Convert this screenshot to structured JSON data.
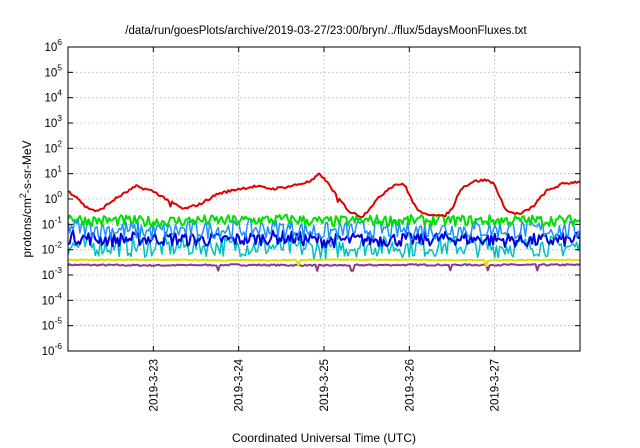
{
  "chart_data": {
    "type": "line",
    "title": "/data/run/goesPlots/archive/2019-03-27/23:00/bryn/../flux/5daysMoonFluxes.txt",
    "xlabel": "Coordinated Universal Time (UTC)",
    "ylabel": {
      "base": "protons/cm",
      "sup": "2",
      "rest": "-s-sr-MeV"
    },
    "y_scale": "log",
    "ylim_exp": [
      -6,
      6
    ],
    "y_ticks": [
      {
        "base": "10",
        "exp": "-6"
      },
      {
        "base": "10",
        "exp": "-5"
      },
      {
        "base": "10",
        "exp": "-4"
      },
      {
        "base": "10",
        "exp": "-3"
      },
      {
        "base": "10",
        "exp": "-2"
      },
      {
        "base": "10",
        "exp": "-1"
      },
      {
        "base": "10",
        "exp": "0"
      },
      {
        "base": "10",
        "exp": "1"
      },
      {
        "base": "10",
        "exp": "2"
      },
      {
        "base": "10",
        "exp": "3"
      },
      {
        "base": "10",
        "exp": "4"
      },
      {
        "base": "10",
        "exp": "5"
      },
      {
        "base": "10",
        "exp": "6"
      }
    ],
    "x_ticks": [
      {
        "label": "2019-3-23",
        "day": 23
      },
      {
        "label": "2019-3-24",
        "day": 24
      },
      {
        "label": "2019-3-25",
        "day": 25
      },
      {
        "label": "2019-3-26",
        "day": 26
      },
      {
        "label": "2019-3-27",
        "day": 27
      }
    ],
    "xlim_day": [
      22.0,
      28.0
    ],
    "grid": true,
    "series": [
      {
        "color": "#e00000",
        "width": 2,
        "noise": 0.05,
        "points": [
          [
            22.0,
            0.3
          ],
          [
            22.1,
            0.1
          ],
          [
            22.2,
            -0.3
          ],
          [
            22.35,
            -0.5
          ],
          [
            22.55,
            0.0
          ],
          [
            22.8,
            0.5
          ],
          [
            23.0,
            0.3
          ],
          [
            23.2,
            -0.1
          ],
          [
            23.35,
            -0.4
          ],
          [
            23.55,
            -0.2
          ],
          [
            23.75,
            0.2
          ],
          [
            24.0,
            0.4
          ],
          [
            24.2,
            0.5
          ],
          [
            24.4,
            0.4
          ],
          [
            24.6,
            0.5
          ],
          [
            24.85,
            0.7
          ],
          [
            24.95,
            1.0
          ],
          [
            25.05,
            0.6
          ],
          [
            25.2,
            -0.1
          ],
          [
            25.3,
            -0.5
          ],
          [
            25.45,
            -0.7
          ],
          [
            25.6,
            -0.1
          ],
          [
            25.75,
            0.4
          ],
          [
            25.85,
            0.6
          ],
          [
            25.95,
            0.55
          ],
          [
            26.05,
            -0.2
          ],
          [
            26.15,
            -0.6
          ],
          [
            26.3,
            -0.6
          ],
          [
            26.4,
            -0.7
          ],
          [
            26.5,
            -0.4
          ],
          [
            26.6,
            0.4
          ],
          [
            26.75,
            0.7
          ],
          [
            26.9,
            0.75
          ],
          [
            27.0,
            0.6
          ],
          [
            27.05,
            0.1
          ],
          [
            27.15,
            -0.5
          ],
          [
            27.3,
            -0.6
          ],
          [
            27.45,
            -0.3
          ],
          [
            27.6,
            0.3
          ],
          [
            27.8,
            0.6
          ],
          [
            28.0,
            0.7
          ]
        ]
      },
      {
        "color": "#00e000",
        "width": 2,
        "noise": 0.22,
        "points": [
          [
            22.0,
            -0.7
          ],
          [
            22.2,
            -0.85
          ],
          [
            22.6,
            -0.85
          ],
          [
            23.0,
            -0.9
          ],
          [
            23.5,
            -0.85
          ],
          [
            24.0,
            -0.85
          ],
          [
            24.6,
            -0.8
          ],
          [
            25.0,
            -0.9
          ],
          [
            25.5,
            -0.85
          ],
          [
            26.0,
            -0.85
          ],
          [
            26.5,
            -0.85
          ],
          [
            27.0,
            -0.85
          ],
          [
            27.5,
            -0.85
          ],
          [
            28.0,
            -0.85
          ]
        ]
      },
      {
        "color": "#1e90ff",
        "width": 1.5,
        "noise": 0.38,
        "points": [
          [
            22.0,
            -1.1
          ],
          [
            22.5,
            -1.2
          ],
          [
            23.0,
            -1.3
          ],
          [
            23.5,
            -1.2
          ],
          [
            24.0,
            -1.2
          ],
          [
            24.5,
            -1.15
          ],
          [
            25.0,
            -1.3
          ],
          [
            25.5,
            -1.2
          ],
          [
            26.0,
            -1.25
          ],
          [
            26.5,
            -1.2
          ],
          [
            27.0,
            -1.2
          ],
          [
            27.5,
            -1.2
          ],
          [
            28.0,
            -1.25
          ]
        ]
      },
      {
        "color": "#0000e0",
        "width": 2,
        "noise": 0.28,
        "points": [
          [
            22.0,
            -1.5
          ],
          [
            22.5,
            -1.6
          ],
          [
            23.0,
            -1.55
          ],
          [
            23.5,
            -1.6
          ],
          [
            24.0,
            -1.6
          ],
          [
            24.5,
            -1.5
          ],
          [
            25.0,
            -1.65
          ],
          [
            25.5,
            -1.6
          ],
          [
            26.0,
            -1.6
          ],
          [
            26.5,
            -1.55
          ],
          [
            27.0,
            -1.6
          ],
          [
            27.5,
            -1.65
          ],
          [
            28.0,
            -1.6
          ]
        ]
      },
      {
        "color": "#00c0c0",
        "width": 1.5,
        "noise": 0.42,
        "points": [
          [
            22.0,
            -1.85
          ],
          [
            22.5,
            -1.85
          ],
          [
            23.0,
            -1.9
          ],
          [
            23.5,
            -1.85
          ],
          [
            24.0,
            -1.85
          ],
          [
            24.5,
            -1.9
          ],
          [
            25.0,
            -1.95
          ],
          [
            25.5,
            -1.85
          ],
          [
            26.0,
            -1.9
          ],
          [
            26.5,
            -1.85
          ],
          [
            27.0,
            -1.9
          ],
          [
            27.5,
            -1.85
          ],
          [
            28.0,
            -1.9
          ]
        ]
      },
      {
        "color": "#e0e000",
        "width": 2,
        "noise": 0.02,
        "points": [
          [
            22.0,
            -2.4
          ],
          [
            23.0,
            -2.4
          ],
          [
            24.0,
            -2.42
          ],
          [
            25.0,
            -2.4
          ],
          [
            26.0,
            -2.4
          ],
          [
            27.0,
            -2.42
          ],
          [
            28.0,
            -2.4
          ]
        ]
      },
      {
        "color": "#8b3a8b",
        "width": 2,
        "noise": 0.03,
        "points": [
          [
            22.0,
            -2.6
          ],
          [
            23.0,
            -2.62
          ],
          [
            24.0,
            -2.6
          ],
          [
            25.0,
            -2.62
          ],
          [
            26.0,
            -2.6
          ],
          [
            27.0,
            -2.6
          ],
          [
            28.0,
            -2.6
          ]
        ]
      }
    ]
  }
}
